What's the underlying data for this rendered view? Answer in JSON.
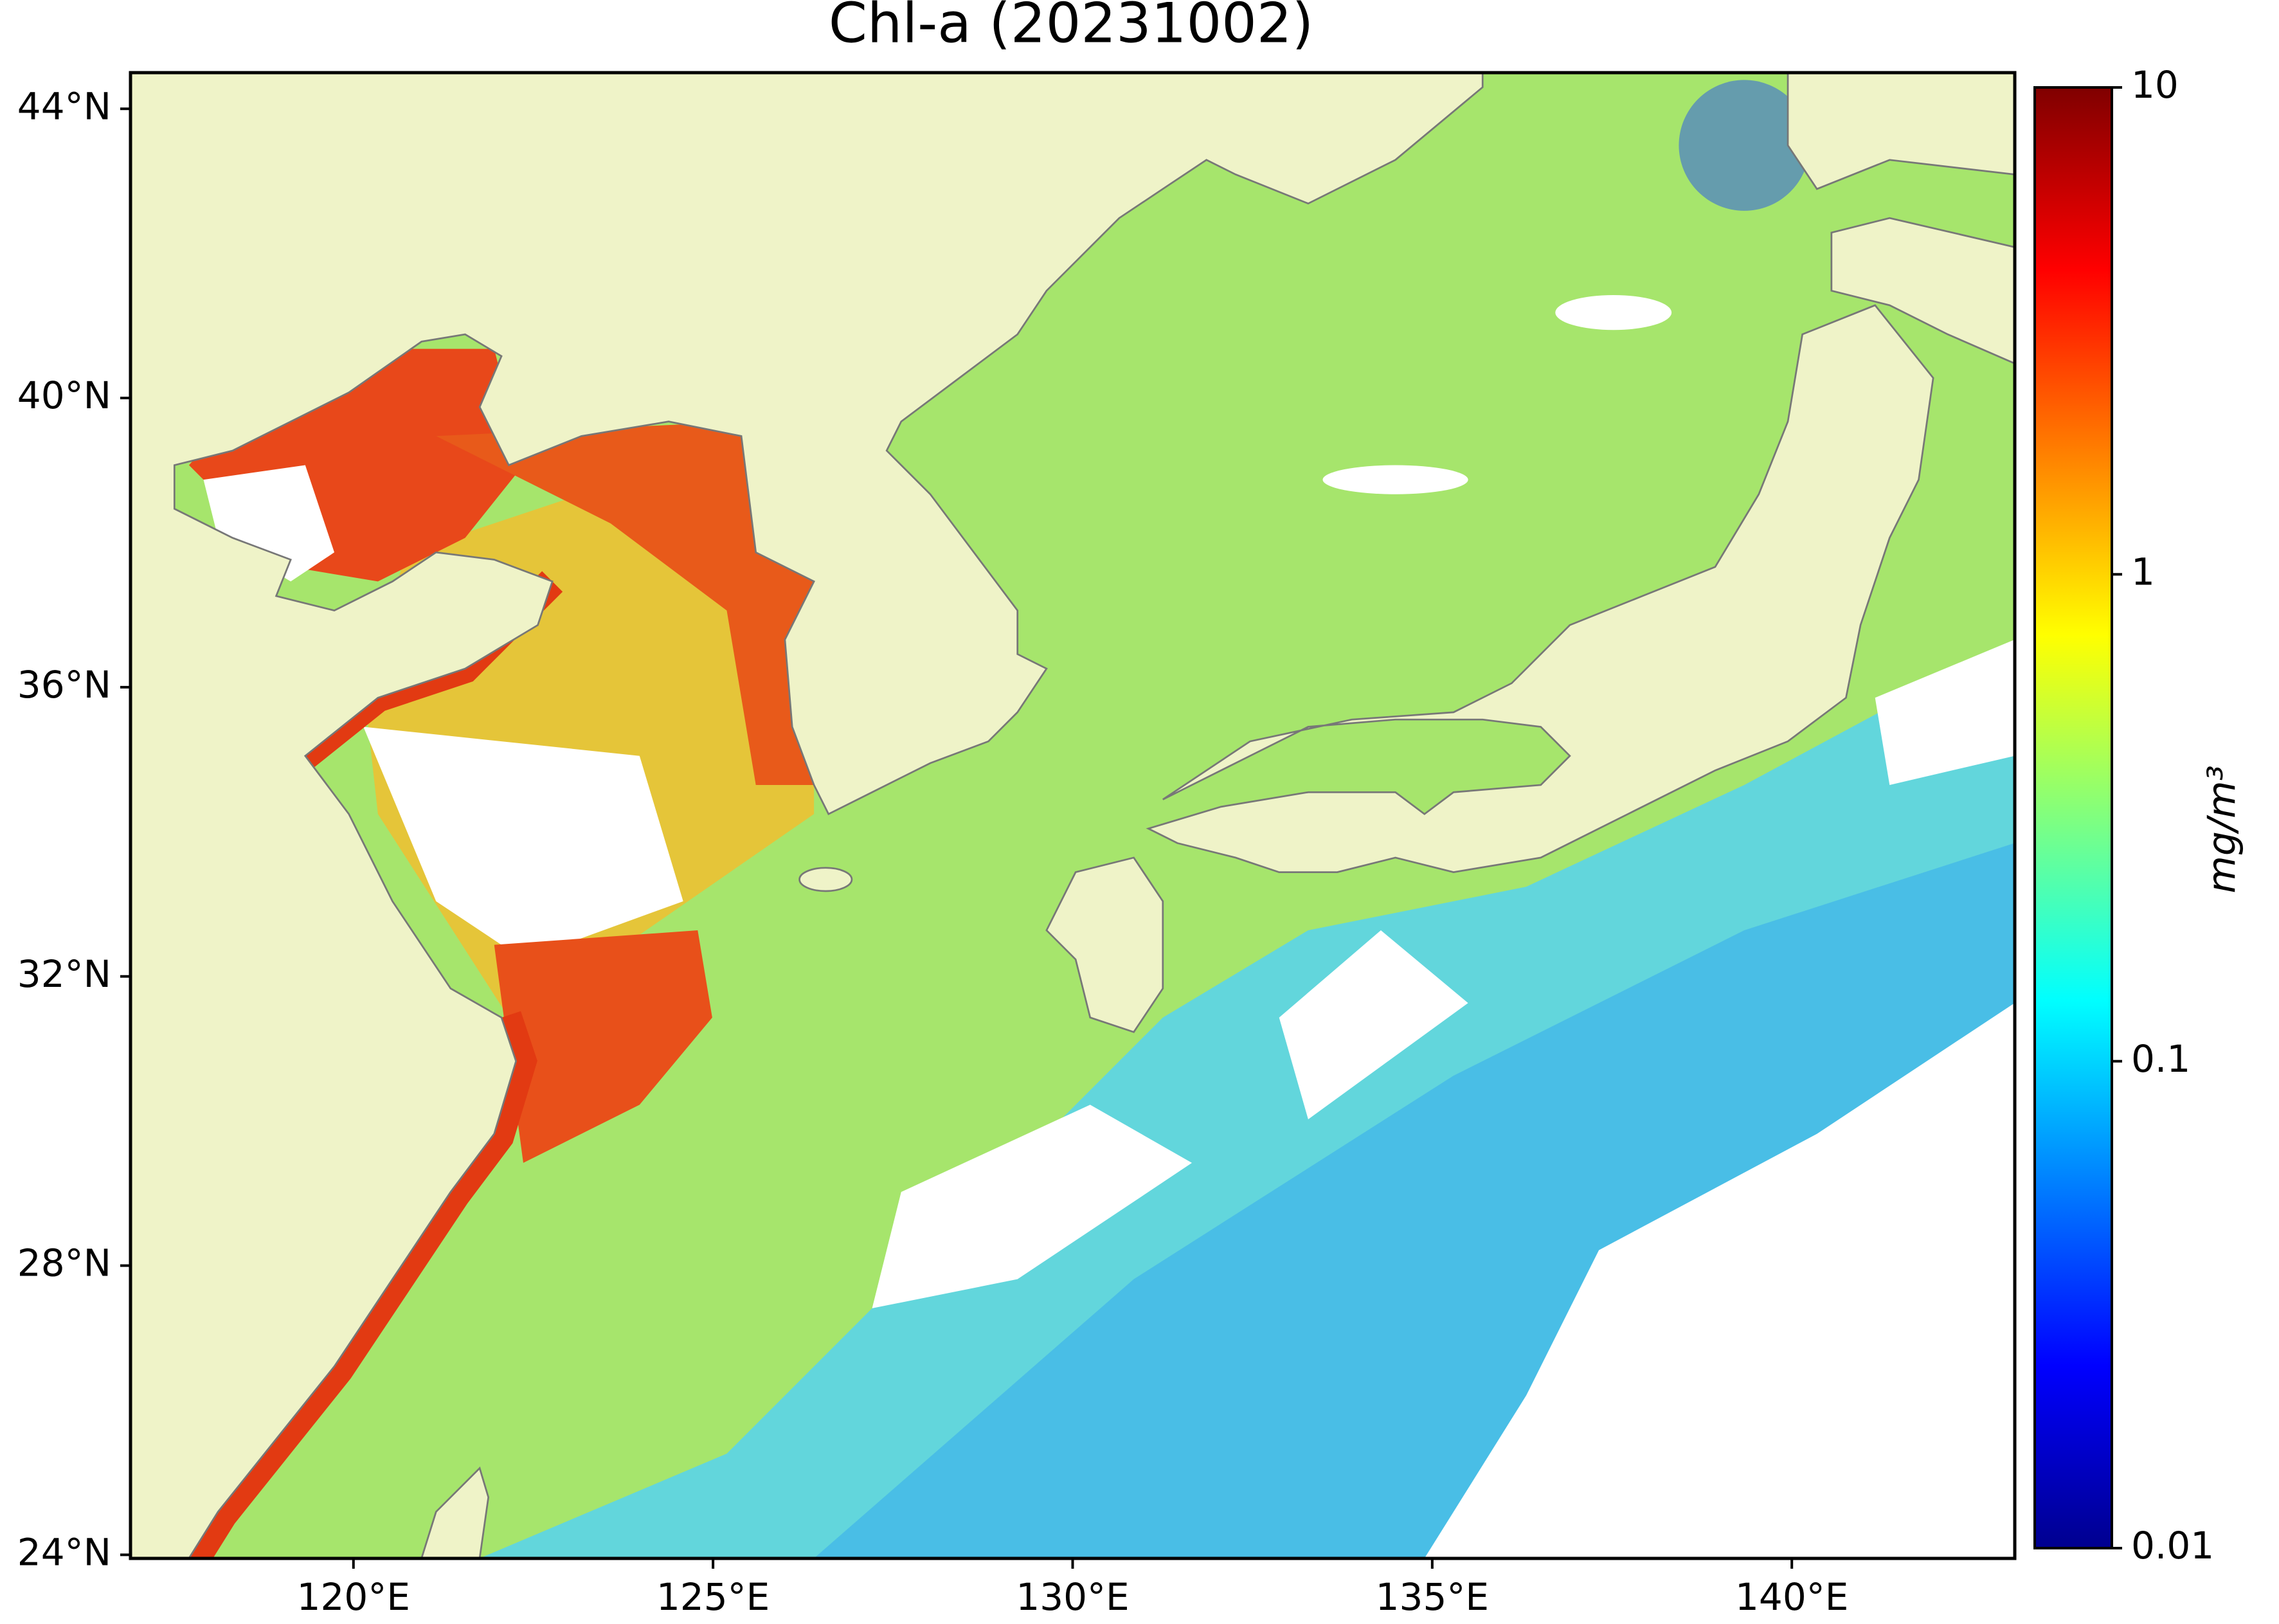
{
  "chart_data": {
    "type": "map",
    "title": "Chl-a (20231002)",
    "xlim": [
      116.9,
      143.1
    ],
    "ylim": [
      23.95,
      44.5
    ],
    "xticks": [
      {
        "value": 120,
        "label": "120°E"
      },
      {
        "value": 125,
        "label": "125°E"
      },
      {
        "value": 130,
        "label": "130°E"
      },
      {
        "value": 135,
        "label": "135°E"
      },
      {
        "value": 140,
        "label": "140°E"
      }
    ],
    "yticks": [
      {
        "value": 24,
        "label": "24°N"
      },
      {
        "value": 28,
        "label": "28°N"
      },
      {
        "value": 32,
        "label": "32°N"
      },
      {
        "value": 36,
        "label": "36°N"
      },
      {
        "value": 40,
        "label": "40°N"
      },
      {
        "value": 44,
        "label": "44°N"
      }
    ],
    "colorbar": {
      "label": "mg/m³",
      "scale": "log",
      "clim": [
        0.01,
        10
      ],
      "ticks": [
        0.01,
        0.1,
        1,
        10
      ],
      "colormap": "jet"
    }
  }
}
